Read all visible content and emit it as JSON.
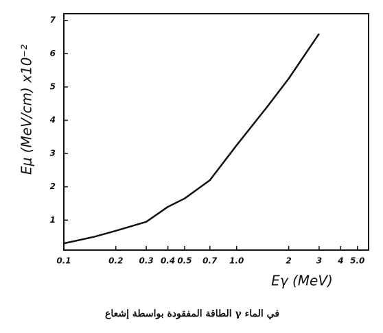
{
  "chart_data": {
    "type": "line",
    "x_label": "Eγ (MeV)",
    "y_label": "Eμ (MeV/cm) x10⁻²",
    "caption": "الطاقة المفقودة بواسطة إشعاع γ في الماء",
    "x_scale": "log",
    "xlim": [
      0.1,
      5.8
    ],
    "xticks": [
      0.1,
      0.2,
      0.3,
      0.4,
      0.5,
      0.7,
      {
        "value": 1.0,
        "label": "1.0"
      },
      2,
      3,
      4,
      {
        "value": 5.0,
        "label": "5.0"
      }
    ],
    "ylim": [
      0.1,
      7.2
    ],
    "yticks": [
      1,
      2,
      3,
      4,
      5,
      6,
      7
    ],
    "color": "#111111",
    "x": [
      0.1,
      0.15,
      0.2,
      0.3,
      0.4,
      0.5,
      0.7,
      1.0,
      1.5,
      2.0,
      3.0
    ],
    "values": [
      0.3,
      0.5,
      0.68,
      0.95,
      1.4,
      1.65,
      2.2,
      3.25,
      4.4,
      5.25,
      6.6
    ]
  }
}
